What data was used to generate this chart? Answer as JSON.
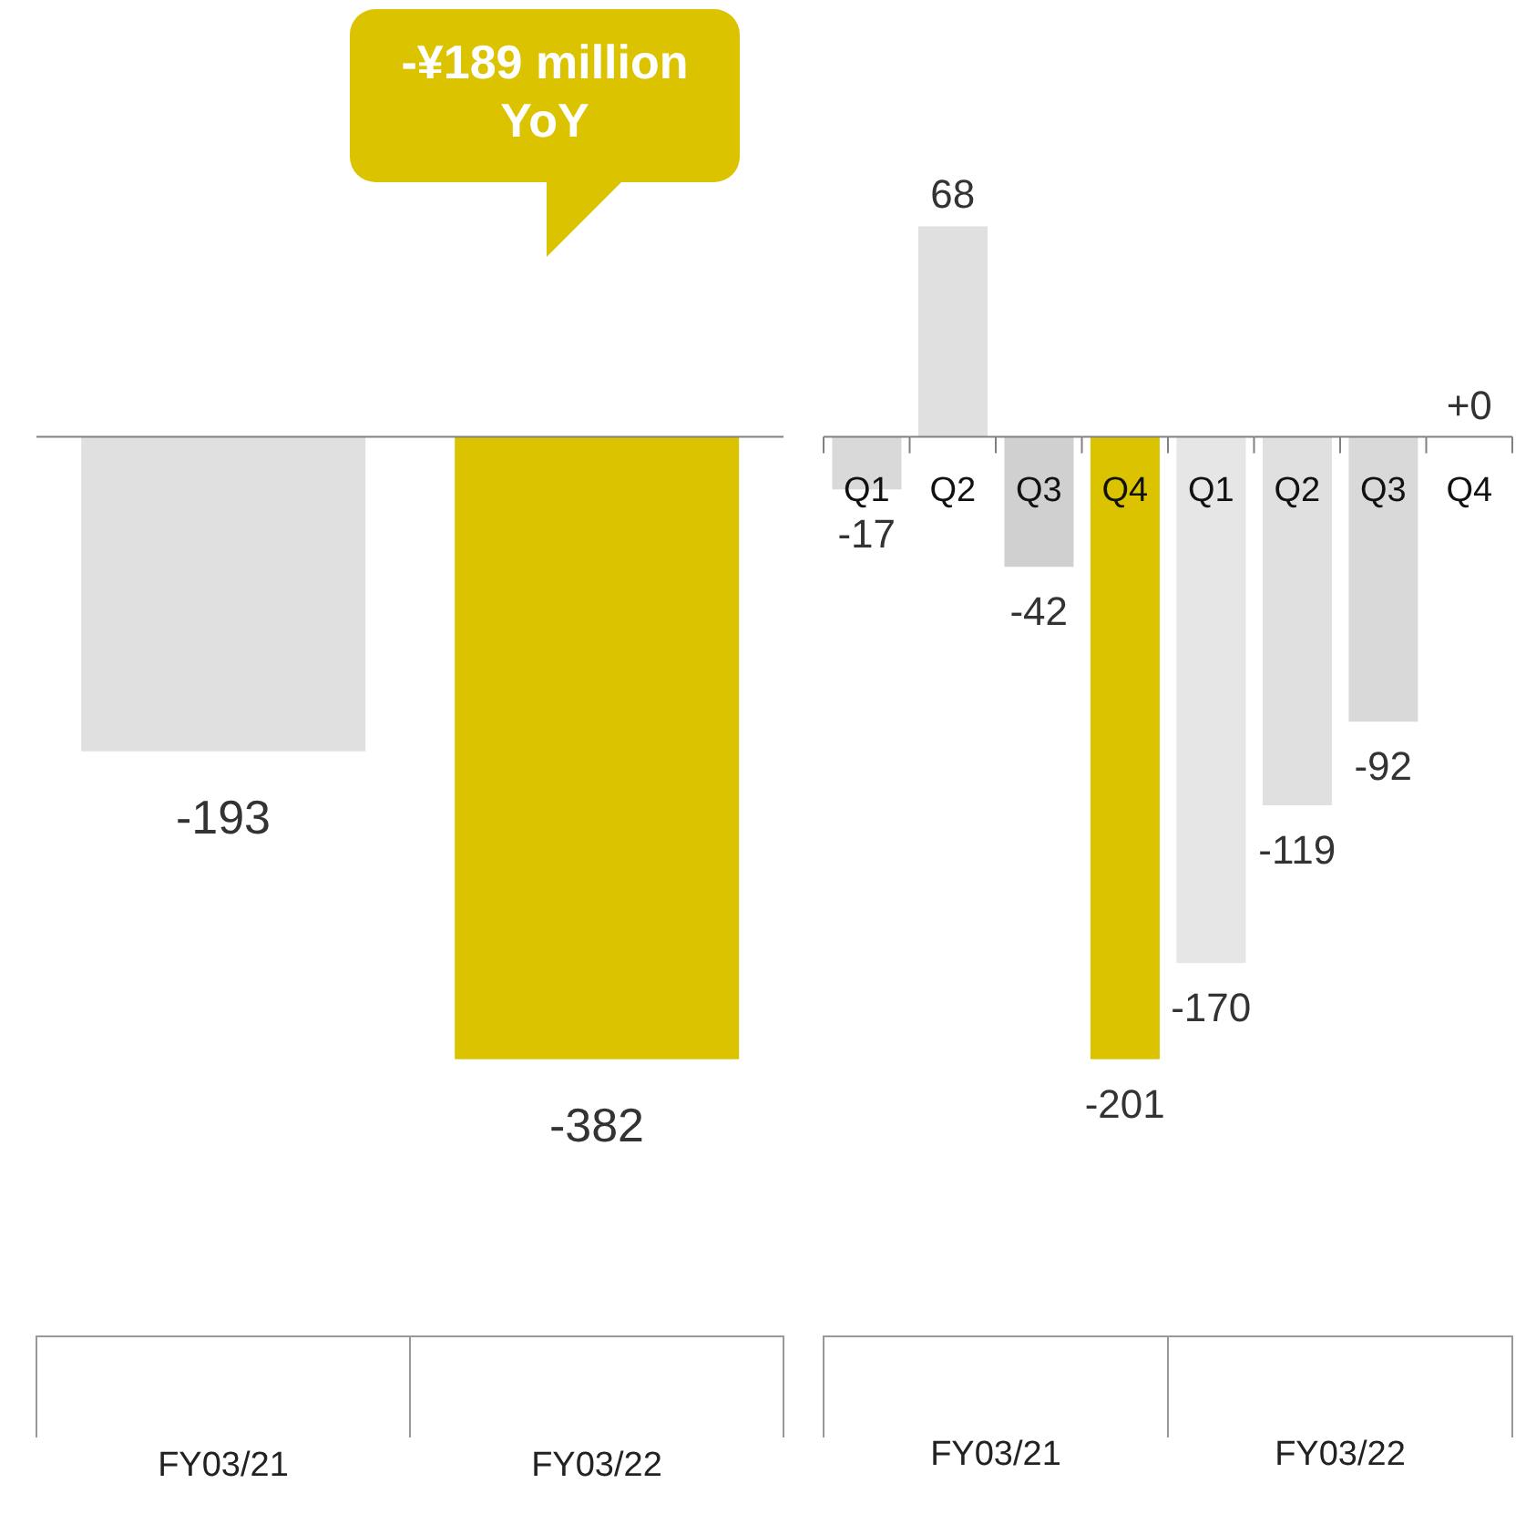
{
  "chart_data": [
    {
      "type": "bar",
      "categories": [
        "FY03/21",
        "FY03/22"
      ],
      "values": [
        -193,
        -382
      ],
      "colors": [
        "#e0e0e0",
        "#dcc300"
      ],
      "data_labels": true,
      "annotations": [
        "-¥189 million YoY"
      ]
    },
    {
      "type": "bar",
      "categories": [
        "Q1",
        "Q2",
        "Q3",
        "Q4",
        "Q1",
        "Q2",
        "Q3",
        "Q4"
      ],
      "values": [
        -17,
        68,
        -42,
        -201,
        -170,
        -119,
        -92,
        0
      ],
      "colors": [
        "#d9d9d9",
        "#e0e0e0",
        "#d0d0d0",
        "#dcc300",
        "#e6e6e6",
        "#e0e0e0",
        "#d9d9d9",
        "#e0e0e0"
      ],
      "value_labels": [
        "-17",
        "68",
        "-42",
        "-201",
        "-170",
        "-119",
        "-92",
        "+0"
      ],
      "annotations": [
        "FY03/21",
        "FY03/22"
      ]
    }
  ]
}
